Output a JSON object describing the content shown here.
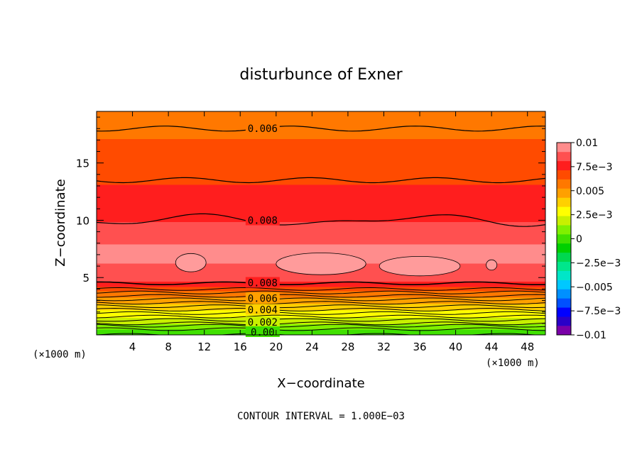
{
  "chart_data": {
    "type": "contour",
    "title": "disturbunce of Exner",
    "xlabel": "X−coordinate",
    "ylabel": "Z−coordinate",
    "x_unit_left": "(×1000 m)",
    "x_unit_right": "(×1000 m)",
    "footer": "CONTOUR INTERVAL = 1.000E−03",
    "xlim": [
      0,
      50
    ],
    "ylim": [
      0,
      19.5
    ],
    "x_ticks": [
      "4",
      "8",
      "12",
      "16",
      "20",
      "24",
      "28",
      "32",
      "36",
      "40",
      "44",
      "48"
    ],
    "y_ticks": [
      "5",
      "10",
      "15"
    ],
    "grid": false,
    "colorbar": {
      "placement": "right",
      "labels": [
        "0.01",
        "7.5e−3",
        "0.005",
        "2.5e−3",
        "0",
        "−2.5e−3",
        "−0.005",
        "−7.5e−3",
        "−0.01"
      ],
      "range": [
        -0.01,
        0.01
      ],
      "colors": [
        "#7a00a8",
        "#2a00c8",
        "#0000ff",
        "#0050ff",
        "#0090ff",
        "#00c8ff",
        "#00e6c8",
        "#00e68c",
        "#00d850",
        "#00d000",
        "#40e000",
        "#80f000",
        "#c8f000",
        "#ffff00",
        "#ffd000",
        "#ffa000",
        "#ff7800",
        "#ff4b00",
        "#ff1e1e",
        "#ff5050",
        "#ff8c8c"
      ]
    },
    "contour_labels": [
      "0.006",
      "0.008",
      "0.008",
      "0.006",
      "0.004",
      "0.002",
      "0.00"
    ],
    "profile_z": [
      0.3,
      0.5,
      0.8,
      1.0,
      1.3,
      1.6,
      1.9,
      2.2,
      2.5,
      2.8,
      3.1,
      3.4,
      3.7,
      4.0,
      4.5,
      7.0,
      8.0,
      10.0,
      12.0,
      13.5,
      15.5,
      18.0,
      19.5
    ],
    "profile_value": [
      0.0,
      0.0005,
      0.001,
      0.0015,
      0.002,
      0.0025,
      0.003,
      0.0035,
      0.004,
      0.0045,
      0.005,
      0.0055,
      0.006,
      0.0065,
      0.008,
      0.0095,
      0.009,
      0.008,
      0.0075,
      0.007,
      0.0065,
      0.006,
      0.0055
    ]
  }
}
